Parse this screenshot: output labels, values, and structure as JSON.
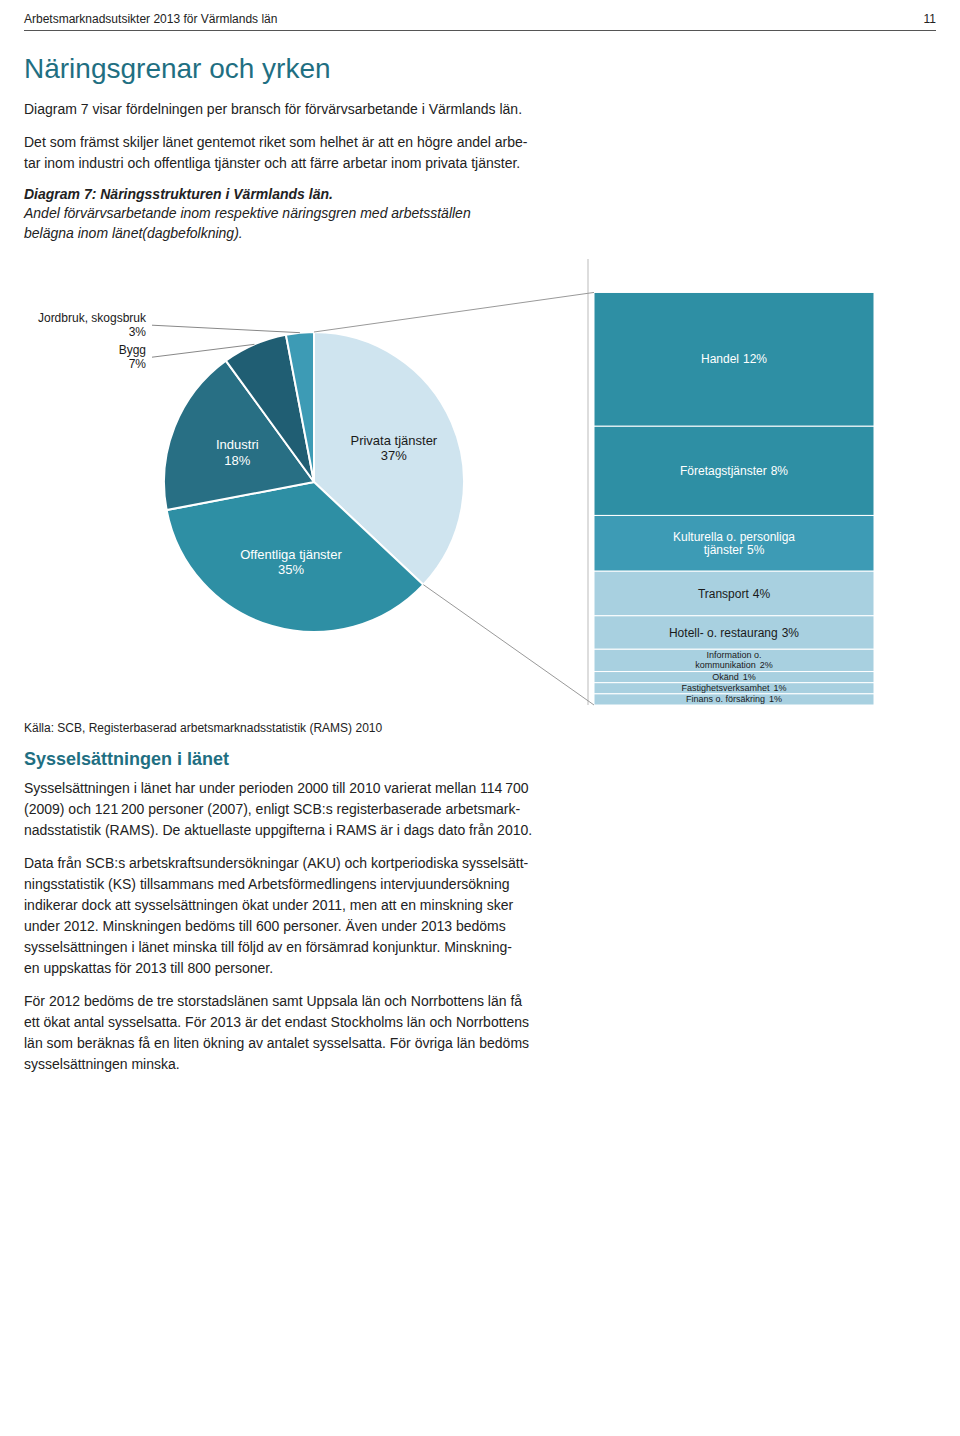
{
  "page": {
    "header_left": "Arbetsmarknadsutsikter 2013 för Värmlands län",
    "header_right": "11",
    "section_title": "Näringsgrenar och yrken",
    "para1": "Diagram 7 visar fördelningen per bransch för förvärvsarbetande i Värmlands län.",
    "para2": "Det som främst skiljer länet gentemot riket som helhet är att en högre andel arbe-\ntar inom industri och offentliga tjänster och att färre arbetar inom privata tjänster.",
    "source": "Källa: SCB, Registerbaserad arbetsmarknadsstatistik (RAMS) 2010",
    "section2_title": "Sysselsättningen i länet",
    "para3": "Sysselsättningen i länet har under perioden 2000 till 2010 varierat mellan 114 700\n(2009) och 121 200 personer (2007), enligt SCB:s registerbaserade arbetsmark-\nnadsstatistik (RAMS). De aktuellaste uppgifterna i RAMS är i dags dato från 2010.",
    "para4": "Data från SCB:s arbetskraftsundersökningar (AKU) och kortperiodiska sysselsätt-\nningsstatistik (KS) tillsammans med Arbetsförmedlingens intervjuundersökning\nindikerar dock att sysselsättningen ökat under 2011, men att en minskning sker\nunder 2012. Minskningen bedöms till 600 personer. Även under 2013 bedöms\nsysselsättningen i länet minska till följd av en försämrad konjunktur.  Minskning-\nen uppskattas för 2013 till 800 personer.",
    "para5": "För 2012 bedöms de tre storstadslänen samt Uppsala län och Norrbottens län få\nett ökat antal sysselsatta. För 2013 är det endast Stockholms län och Norrbottens\nlän som beräknas få en liten ökning av antalet sysselsatta. För övriga län bedöms\nsysselsättningen minska."
  },
  "chart_data": [
    {
      "type": "pie",
      "title": "Diagram 7: Näringsstrukturen i Värmlands län.",
      "subtitle": "Andel förvärvsarbetande inom respektive näringsgren med arbetsställen\nbelägna inom länet(dagbefolkning).",
      "categories": [
        "Privata tjänster",
        "Offentliga tjänster",
        "Industri",
        "Bygg",
        "Jordbruk, skogsbruk"
      ],
      "values": [
        37,
        35,
        18,
        7,
        3
      ],
      "value_labels": [
        "37%",
        "35%",
        "18%",
        "7%",
        "3%"
      ],
      "colors": [
        "#cfe4ef",
        "#2e8fa4",
        "#286f84",
        "#205e73",
        "#3d9bb5"
      ],
      "data_labels": true
    },
    {
      "type": "bar",
      "stacked": true,
      "data_labels": true,
      "tick_labels": false,
      "categories": [
        "Handel",
        "Företagstjänster",
        "Kulturella o. personliga\ntjänster",
        "Transport",
        "Hotell- o. restaurang",
        "Information o.\nkommunikation",
        "Okänd",
        "Fastighetsverksamhet",
        "Finans o. försäkring"
      ],
      "values": [
        12,
        8,
        5,
        4,
        3,
        2,
        1,
        1,
        1
      ],
      "value_labels": [
        "12%",
        "8%",
        "5%",
        "4%",
        "3%",
        "2%",
        "1%",
        "1%",
        "1%"
      ],
      "colors": [
        "#2e8fa4",
        "#2e8fa4",
        "#3d9bb5",
        "#a8d0e0",
        "#a8d0e0",
        "#a8d0e0",
        "#a8d0e0",
        "#a8d0e0",
        "#a8d0e0"
      ],
      "ylim": [
        0,
        40
      ]
    }
  ]
}
